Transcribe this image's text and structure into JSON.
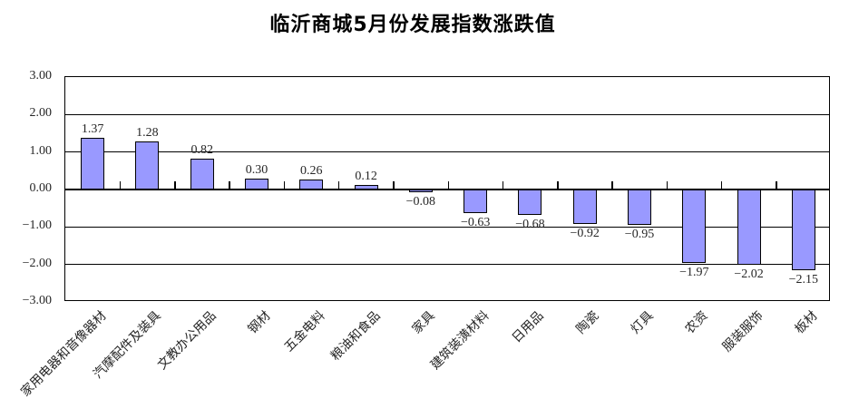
{
  "title": "临沂商城5月份发展指数涨跌值",
  "chart_data": {
    "type": "bar",
    "title": "临沂商城5月份发展指数涨跌值",
    "categories": [
      "家用电器和音像器材",
      "汽摩配件及装具",
      "文教办公用品",
      "钢材",
      "五金电料",
      "粮油和食品",
      "家具",
      "建筑装潢材料",
      "日用品",
      "陶瓷",
      "灯具",
      "农资",
      "服装服饰",
      "板材"
    ],
    "values": [
      1.37,
      1.28,
      0.82,
      0.3,
      0.26,
      0.12,
      -0.08,
      -0.63,
      -0.68,
      -0.92,
      -0.95,
      -1.97,
      -2.02,
      -2.15
    ],
    "data_labels": [
      "1.37",
      "1.28",
      "0.82",
      "0.30",
      "0.26",
      "0.12",
      "−0.08",
      "−0.63",
      "−0.68",
      "−0.92",
      "−0.95",
      "−1.97",
      "−2.02",
      "−2.15"
    ],
    "ylim": [
      -3,
      3
    ],
    "ytick_step": 1,
    "ytick_labels": [
      "3.00",
      "2.00",
      "1.00",
      "0.00",
      "−1.00",
      "−2.00",
      "−3.00"
    ],
    "grid": true,
    "legend": "none",
    "xlabel": "",
    "ylabel": "",
    "colors": {
      "bar_fill": "#9999FF",
      "bar_border": "#000000",
      "axis": "#000000",
      "text": "#262626",
      "background": "#FFFFFF"
    }
  }
}
